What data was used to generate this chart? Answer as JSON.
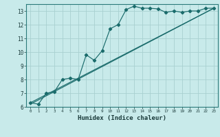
{
  "xlabel": "Humidex (Indice chaleur)",
  "ylabel": "",
  "bg_color": "#c8eaea",
  "grid_color": "#a8d0d0",
  "line_color": "#1a6b6b",
  "xlim": [
    -0.5,
    23.5
  ],
  "ylim": [
    6,
    13.5
  ],
  "xtick_vals": [
    0,
    1,
    2,
    3,
    4,
    5,
    6,
    7,
    8,
    9,
    10,
    11,
    12,
    13,
    14,
    15,
    16,
    17,
    18,
    19,
    20,
    21,
    22,
    23
  ],
  "xtick_labels": [
    "0",
    "1",
    "2",
    "3",
    "4",
    "5",
    "6",
    "7",
    "8",
    "9",
    "10",
    "11",
    "12",
    "13",
    "14",
    "15",
    "16",
    "17",
    "18",
    "19",
    "20",
    "21",
    "22",
    "23"
  ],
  "ytick_vals": [
    6,
    7,
    8,
    9,
    10,
    11,
    12,
    13
  ],
  "ytick_labels": [
    "6",
    "7",
    "8",
    "9",
    "10",
    "11",
    "12",
    "13"
  ],
  "line1_x": [
    0,
    1,
    2,
    3,
    4,
    5,
    6,
    7,
    8,
    9,
    10,
    11,
    12,
    13,
    14,
    15,
    16,
    17,
    18,
    19,
    20,
    21,
    22,
    23
  ],
  "line1_y": [
    6.3,
    6.2,
    7.0,
    7.1,
    8.0,
    8.1,
    8.0,
    9.8,
    9.4,
    10.1,
    11.7,
    12.0,
    13.1,
    13.35,
    13.2,
    13.2,
    13.15,
    12.9,
    13.0,
    12.9,
    13.0,
    13.0,
    13.2,
    13.2
  ],
  "line2_x": [
    0,
    23
  ],
  "line2_y": [
    6.3,
    13.2
  ],
  "line3_x": [
    0,
    23
  ],
  "line3_y": [
    6.2,
    13.2
  ]
}
